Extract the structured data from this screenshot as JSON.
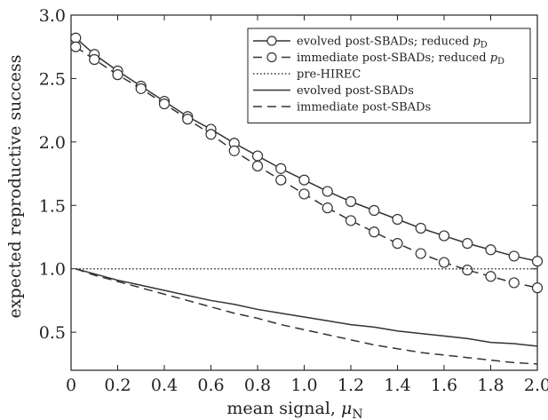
{
  "chart_data": {
    "type": "line",
    "xlabel": "mean signal, ",
    "xlabel_symbol": "μ",
    "xlabel_sub": "N",
    "ylabel": "expected reproductive success",
    "xlim": [
      0,
      2.0
    ],
    "ylim": [
      0.2,
      3.0
    ],
    "xticks": [
      0,
      0.2,
      0.4,
      0.6,
      0.8,
      1.0,
      1.2,
      1.4,
      1.6,
      1.8,
      2.0
    ],
    "xtick_labels": [
      "0",
      "0.2",
      "0.4",
      "0.6",
      "0.8",
      "1.0",
      "1.2",
      "1.4",
      "1.6",
      "1.8",
      "2.0"
    ],
    "yticks": [
      0.5,
      1.0,
      1.5,
      2.0,
      2.5,
      3.0
    ],
    "ytick_labels": [
      "0.5",
      "1.0",
      "1.5",
      "2.0",
      "2.5",
      "3.0"
    ],
    "grid": false,
    "legend_position": "top-right",
    "x": [
      0.02,
      0.1,
      0.2,
      0.3,
      0.4,
      0.5,
      0.6,
      0.7,
      0.8,
      0.9,
      1.0,
      1.1,
      1.2,
      1.3,
      1.4,
      1.5,
      1.6,
      1.7,
      1.8,
      1.9,
      2.0
    ],
    "series": [
      {
        "name": "evolved post-SBADs; reduced ",
        "name_symbol": "p",
        "name_sub": "D",
        "style": "solid-circles",
        "values": [
          2.82,
          2.69,
          2.56,
          2.44,
          2.32,
          2.2,
          2.1,
          1.99,
          1.89,
          1.79,
          1.7,
          1.61,
          1.53,
          1.46,
          1.39,
          1.32,
          1.26,
          1.2,
          1.15,
          1.1,
          1.06
        ]
      },
      {
        "name": "immediate post-SBADs; reduced ",
        "name_symbol": "p",
        "name_sub": "D",
        "style": "dashed-circles",
        "values": [
          2.75,
          2.65,
          2.53,
          2.42,
          2.3,
          2.18,
          2.06,
          1.93,
          1.81,
          1.7,
          1.59,
          1.48,
          1.38,
          1.29,
          1.2,
          1.12,
          1.05,
          0.99,
          0.94,
          0.89,
          0.85
        ]
      },
      {
        "name": "pre-HIREC",
        "style": "dotted",
        "values": [
          1.0,
          1.0,
          1.0,
          1.0,
          1.0,
          1.0,
          1.0,
          1.0,
          1.0,
          1.0,
          1.0,
          1.0,
          1.0,
          1.0,
          1.0,
          1.0,
          1.0,
          1.0,
          1.0,
          1.0,
          1.0
        ]
      },
      {
        "name": "evolved post-SBADs",
        "style": "solid",
        "values": [
          1.0,
          0.96,
          0.91,
          0.87,
          0.83,
          0.79,
          0.75,
          0.72,
          0.68,
          0.65,
          0.62,
          0.59,
          0.56,
          0.54,
          0.51,
          0.49,
          0.47,
          0.45,
          0.42,
          0.41,
          0.39
        ]
      },
      {
        "name": "immediate post-SBADs",
        "style": "dashed",
        "values": [
          1.0,
          0.95,
          0.9,
          0.85,
          0.8,
          0.75,
          0.7,
          0.65,
          0.61,
          0.56,
          0.52,
          0.48,
          0.44,
          0.4,
          0.37,
          0.34,
          0.32,
          0.3,
          0.28,
          0.26,
          0.25
        ]
      }
    ]
  }
}
